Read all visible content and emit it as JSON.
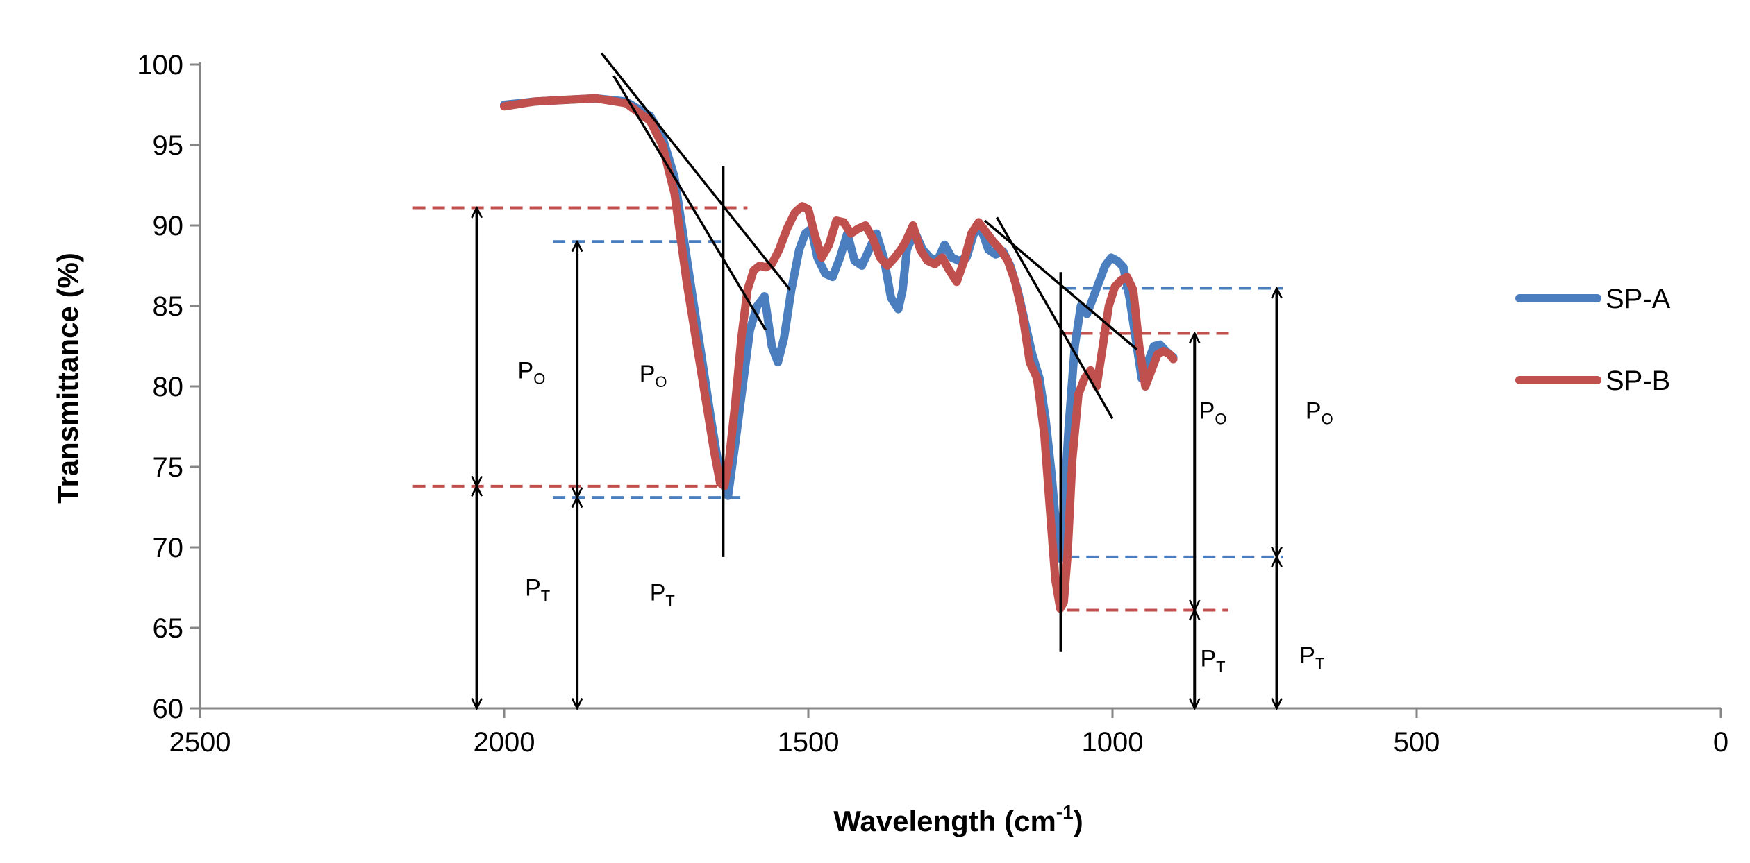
{
  "chart_data": {
    "type": "line",
    "title": "",
    "xlabel": "Wavelength (cm",
    "xlabel_sup": "-1",
    "xlabel_end": ")",
    "ylabel": "Transmittance (%)",
    "xlim": [
      2500,
      0
    ],
    "ylim": [
      60,
      100
    ],
    "x_reversed": true,
    "x_ticks": [
      2500,
      2000,
      1500,
      1000,
      500,
      0
    ],
    "y_ticks": [
      60,
      65,
      70,
      75,
      80,
      85,
      90,
      95,
      100
    ],
    "grid": false,
    "legend_position": "right",
    "series": [
      {
        "name": "SP-A",
        "color": "#4a7ebf",
        "x": [
          2000,
          1950,
          1900,
          1850,
          1800,
          1760,
          1740,
          1720,
          1700,
          1680,
          1660,
          1645,
          1632,
          1620,
          1608,
          1596,
          1584,
          1572,
          1560,
          1550,
          1540,
          1528,
          1515,
          1505,
          1495,
          1485,
          1472,
          1460,
          1448,
          1436,
          1424,
          1412,
          1400,
          1388,
          1376,
          1364,
          1352,
          1345,
          1338,
          1325,
          1312,
          1300,
          1288,
          1276,
          1264,
          1252,
          1240,
          1228,
          1216,
          1204,
          1192,
          1180,
          1168,
          1156,
          1144,
          1132,
          1120,
          1110,
          1100,
          1092,
          1086,
          1080,
          1072,
          1062,
          1052,
          1042,
          1032,
          1022,
          1012,
          1002,
          992,
          982,
          972,
          962,
          952,
          942,
          932,
          922,
          912,
          900
        ],
        "y": [
          97.5,
          97.7,
          97.8,
          97.9,
          97.7,
          96.8,
          95.5,
          93.0,
          88.0,
          83.0,
          78.0,
          74.5,
          73.2,
          76.5,
          80.0,
          83.5,
          85.0,
          85.6,
          82.5,
          81.5,
          83.0,
          86.0,
          88.5,
          89.5,
          89.8,
          88.0,
          87.0,
          86.8,
          88.0,
          89.5,
          87.8,
          87.5,
          88.5,
          89.5,
          88.0,
          85.5,
          84.8,
          86.0,
          88.5,
          89.6,
          88.5,
          88.0,
          87.8,
          88.8,
          88.0,
          87.8,
          88.0,
          89.5,
          89.8,
          88.5,
          88.2,
          88.4,
          87.5,
          86.0,
          84.0,
          82.0,
          80.5,
          78.0,
          74.5,
          71.0,
          69.3,
          72.5,
          77.5,
          82.5,
          85.0,
          84.5,
          85.5,
          86.5,
          87.5,
          88.0,
          87.8,
          87.4,
          85.5,
          83.0,
          80.5,
          81.5,
          82.5,
          82.6,
          82.2,
          81.8
        ]
      },
      {
        "name": "SP-B",
        "color": "#c0504d",
        "x": [
          2000,
          1950,
          1900,
          1850,
          1800,
          1760,
          1740,
          1720,
          1700,
          1685,
          1670,
          1655,
          1645,
          1638,
          1630,
          1620,
          1610,
          1600,
          1590,
          1580,
          1570,
          1560,
          1548,
          1535,
          1522,
          1510,
          1500,
          1490,
          1478,
          1466,
          1454,
          1442,
          1430,
          1418,
          1406,
          1394,
          1382,
          1370,
          1358,
          1348,
          1340,
          1328,
          1316,
          1304,
          1292,
          1280,
          1268,
          1256,
          1244,
          1232,
          1220,
          1208,
          1196,
          1184,
          1172,
          1160,
          1148,
          1136,
          1124,
          1112,
          1102,
          1094,
          1086,
          1080,
          1074,
          1066,
          1056,
          1046,
          1036,
          1026,
          1016,
          1006,
          996,
          986,
          976,
          966,
          956,
          946,
          936,
          926,
          916,
          906,
          900
        ],
        "y": [
          97.4,
          97.7,
          97.8,
          97.9,
          97.6,
          96.5,
          95.0,
          92.0,
          86.5,
          83.0,
          79.5,
          76.0,
          74.0,
          73.8,
          75.5,
          79.0,
          83.0,
          86.0,
          87.2,
          87.5,
          87.4,
          87.6,
          88.5,
          89.8,
          90.8,
          91.2,
          91.0,
          89.5,
          88.0,
          88.8,
          90.3,
          90.2,
          89.5,
          89.8,
          90.0,
          89.2,
          88.0,
          87.5,
          88.0,
          88.5,
          89.0,
          90.0,
          88.5,
          87.8,
          87.6,
          88.0,
          87.2,
          86.5,
          87.8,
          89.5,
          90.2,
          89.6,
          89.0,
          88.5,
          87.8,
          86.5,
          84.5,
          81.5,
          80.5,
          77.0,
          72.0,
          68.0,
          66.2,
          66.6,
          69.5,
          75.5,
          79.5,
          80.5,
          81.0,
          80.0,
          82.5,
          85.0,
          86.2,
          86.6,
          86.8,
          86.0,
          82.5,
          80.0,
          81.0,
          82.0,
          82.2,
          82.0,
          81.7
        ]
      }
    ],
    "annotations": {
      "tangent_lines": [
        {
          "x1": 1840,
          "y1": 100.7,
          "x2": 1530,
          "y2": 86.0
        },
        {
          "x1": 1820,
          "y1": 99.3,
          "x2": 1570,
          "y2": 83.5
        },
        {
          "x1": 1210,
          "y1": 90.3,
          "x2": 960,
          "y2": 82.3
        },
        {
          "x1": 1190,
          "y1": 90.5,
          "x2": 1000,
          "y2": 78.0
        }
      ],
      "vertical_lines": [
        {
          "x": 1640,
          "y1": 69.4,
          "y2": 93.7
        },
        {
          "x": 1085,
          "y1": 63.5,
          "y2": 87.1
        }
      ],
      "baselines": [
        {
          "series": "SP-B",
          "x1": 2150,
          "x2": 1600,
          "y": 91.1
        },
        {
          "series": "SP-A",
          "x1": 1920,
          "x2": 1640,
          "y": 89.0
        },
        {
          "series": "SP-B",
          "x1": 2150,
          "x2": 1650,
          "y": 73.8
        },
        {
          "series": "SP-A",
          "x1": 1920,
          "x2": 1610,
          "y": 73.1
        },
        {
          "series": "SP-A",
          "x1": 1080,
          "x2": 720,
          "y": 86.1
        },
        {
          "series": "SP-B",
          "x1": 1085,
          "x2": 800,
          "y": 83.3
        },
        {
          "series": "SP-A",
          "x1": 1075,
          "x2": 720,
          "y": 69.4
        },
        {
          "series": "SP-B",
          "x1": 1075,
          "x2": 810,
          "y": 66.1
        }
      ],
      "double_arrows": [
        {
          "x": 2045,
          "y_top": 91.1,
          "y_bottom": 73.8
        },
        {
          "x": 2045,
          "y_top": 73.8,
          "y_bottom": 60
        },
        {
          "x": 1880,
          "y_top": 89.0,
          "y_bottom": 73.1
        },
        {
          "x": 1880,
          "y_top": 73.1,
          "y_bottom": 60
        },
        {
          "x": 865,
          "y_top": 83.3,
          "y_bottom": 66.1
        },
        {
          "x": 865,
          "y_top": 66.1,
          "y_bottom": 60
        },
        {
          "x": 730,
          "y_top": 86.1,
          "y_bottom": 69.4
        },
        {
          "x": 730,
          "y_top": 69.4,
          "y_bottom": 60
        }
      ],
      "labels": [
        {
          "text": "P",
          "sub": "O",
          "x": 1955,
          "y": 80.5
        },
        {
          "text": "P",
          "sub": "O",
          "x": 1755,
          "y": 80.3
        },
        {
          "text": "P",
          "sub": "T",
          "x": 1945,
          "y": 67.0
        },
        {
          "text": "P",
          "sub": "T",
          "x": 1740,
          "y": 66.7
        },
        {
          "text": "P",
          "sub": "O",
          "x": 835,
          "y": 78.0
        },
        {
          "text": "P",
          "sub": "O",
          "x": 660,
          "y": 78.0
        },
        {
          "text": "P",
          "sub": "T",
          "x": 835,
          "y": 62.6
        },
        {
          "text": "P",
          "sub": "T",
          "x": 672,
          "y": 62.8
        }
      ]
    }
  }
}
